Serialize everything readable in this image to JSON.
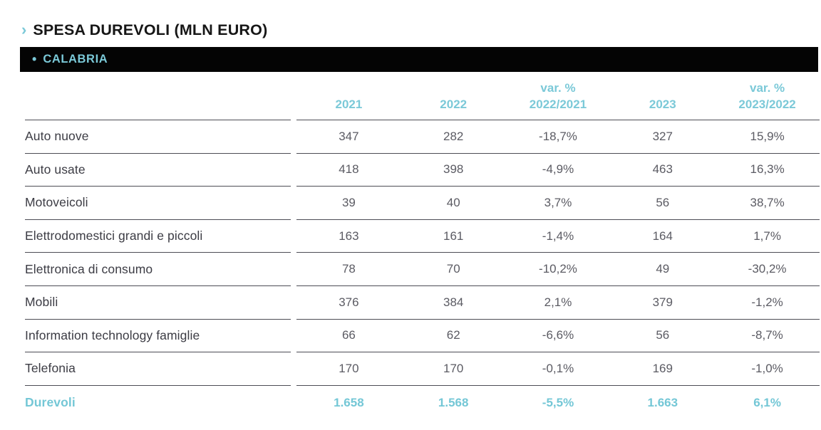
{
  "header": {
    "chevron_glyph": "›",
    "title": "SPESA DUREVOLI (MLN EURO)",
    "bullet_glyph": "•",
    "region": "CALABRIA"
  },
  "accent_color": "#7bc9d8",
  "table": {
    "headers": [
      "2021",
      "2022",
      "var. %\n2022/2021",
      "2023",
      "var. %\n2023/2022"
    ],
    "rows": [
      {
        "label": "Auto nuove",
        "values": [
          "347",
          "282",
          "-18,7%",
          "327",
          "15,9%"
        ]
      },
      {
        "label": "Auto usate",
        "values": [
          "418",
          "398",
          "-4,9%",
          "463",
          "16,3%"
        ]
      },
      {
        "label": "Motoveicoli",
        "values": [
          "39",
          "40",
          "3,7%",
          "56",
          "38,7%"
        ]
      },
      {
        "label": "Elettrodomestici grandi e piccoli",
        "values": [
          "163",
          "161",
          "-1,4%",
          "164",
          "1,7%"
        ]
      },
      {
        "label": "Elettronica di consumo",
        "values": [
          "78",
          "70",
          "-10,2%",
          "49",
          "-30,2%"
        ]
      },
      {
        "label": "Mobili",
        "values": [
          "376",
          "384",
          "2,1%",
          "379",
          "-1,2%"
        ]
      },
      {
        "label": "Information technology famiglie",
        "values": [
          "66",
          "62",
          "-6,6%",
          "56",
          "-8,7%"
        ]
      },
      {
        "label": "Telefonia",
        "values": [
          "170",
          "170",
          "-0,1%",
          "169",
          "-1,0%"
        ]
      }
    ],
    "total_row": {
      "label": "Durevoli",
      "values": [
        "1.658",
        "1.568",
        "-5,5%",
        "1.663",
        "6,1%"
      ]
    }
  }
}
